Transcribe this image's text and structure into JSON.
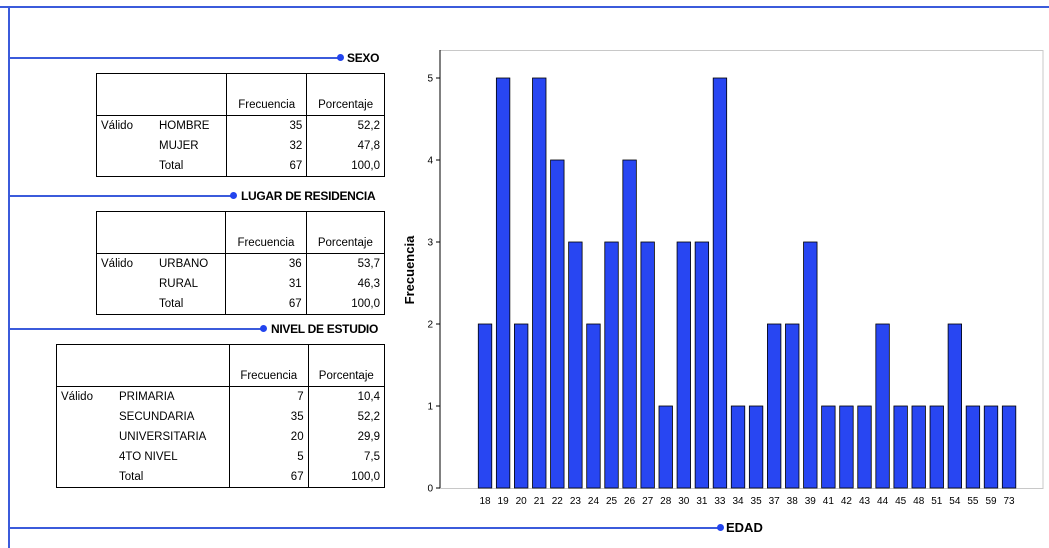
{
  "sections": {
    "sexo": {
      "title": "SEXO"
    },
    "residencia": {
      "title": "LUGAR DE RESIDENCIA"
    },
    "estudio": {
      "title": "NIVEL DE ESTUDIO"
    }
  },
  "tables": {
    "sexo": {
      "headers": [
        "Frecuencia",
        "Porcentaje"
      ],
      "valid_label": "Válido",
      "rows": [
        {
          "label": "HOMBRE",
          "freq": "35",
          "pct": "52,2"
        },
        {
          "label": "MUJER",
          "freq": "32",
          "pct": "47,8"
        },
        {
          "label": "Total",
          "freq": "67",
          "pct": "100,0"
        }
      ]
    },
    "residencia": {
      "headers": [
        "Frecuencia",
        "Porcentaje"
      ],
      "valid_label": "Válido",
      "rows": [
        {
          "label": "URBANO",
          "freq": "36",
          "pct": "53,7"
        },
        {
          "label": "RURAL",
          "freq": "31",
          "pct": "46,3"
        },
        {
          "label": "Total",
          "freq": "67",
          "pct": "100,0"
        }
      ]
    },
    "estudio": {
      "headers": [
        "Frecuencia",
        "Porcentaje"
      ],
      "valid_label": "Válido",
      "rows": [
        {
          "label": "PRIMARIA",
          "freq": "7",
          "pct": "10,4"
        },
        {
          "label": "SECUNDARIA",
          "freq": "35",
          "pct": "52,2"
        },
        {
          "label": "UNIVERSITARIA",
          "freq": "20",
          "pct": "29,9"
        },
        {
          "label": "4TO NIVEL",
          "freq": "5",
          "pct": "7,5"
        },
        {
          "label": "Total",
          "freq": "67",
          "pct": "100,0"
        }
      ]
    }
  },
  "chart_data": {
    "type": "bar",
    "title": "EDAD",
    "xlabel": "",
    "ylabel": "Frecuencia",
    "categories": [
      "18",
      "19",
      "20",
      "21",
      "22",
      "23",
      "24",
      "25",
      "26",
      "27",
      "28",
      "30",
      "31",
      "33",
      "34",
      "35",
      "37",
      "38",
      "39",
      "41",
      "42",
      "43",
      "44",
      "45",
      "48",
      "51",
      "54",
      "55",
      "59",
      "73"
    ],
    "values": [
      2,
      5,
      2,
      5,
      4,
      3,
      2,
      3,
      4,
      3,
      1,
      3,
      3,
      5,
      1,
      1,
      2,
      2,
      3,
      1,
      1,
      1,
      2,
      1,
      1,
      1,
      2,
      1,
      1,
      1
    ],
    "ylim": [
      0,
      5
    ],
    "yticks": [
      "0",
      "1",
      "2",
      "3",
      "4",
      "5"
    ],
    "bar_color": "#2846f2",
    "grid": false
  }
}
